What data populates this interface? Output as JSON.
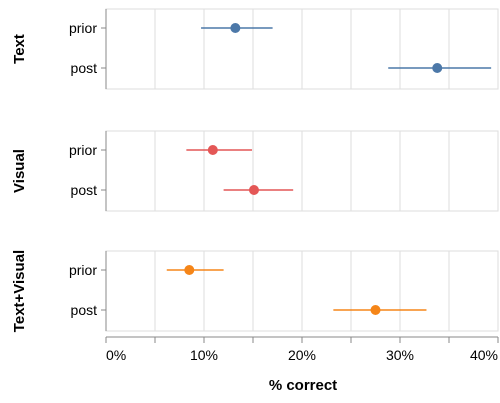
{
  "chart_data": {
    "type": "errorbar",
    "xlabel": "% correct",
    "xlim": [
      0,
      40
    ],
    "xticks": [
      "0%",
      "10%",
      "20%",
      "30%",
      "40%"
    ],
    "grid": true,
    "facets": [
      {
        "label": "Text",
        "color": "#4c78a8",
        "rows": [
          {
            "category": "prior",
            "mean": 13.2,
            "low": 9.7,
            "high": 17.0
          },
          {
            "category": "post",
            "mean": 33.8,
            "low": 28.8,
            "high": 39.3
          }
        ]
      },
      {
        "label": "Visual",
        "color": "#e45756",
        "rows": [
          {
            "category": "prior",
            "mean": 10.9,
            "low": 8.2,
            "high": 14.9
          },
          {
            "category": "post",
            "mean": 15.1,
            "low": 12.0,
            "high": 19.1
          }
        ]
      },
      {
        "label": "Text+Visual",
        "color": "#f58518",
        "rows": [
          {
            "category": "prior",
            "mean": 8.5,
            "low": 6.2,
            "high": 12.0
          },
          {
            "category": "post",
            "mean": 27.5,
            "low": 23.2,
            "high": 32.7
          }
        ]
      }
    ]
  }
}
